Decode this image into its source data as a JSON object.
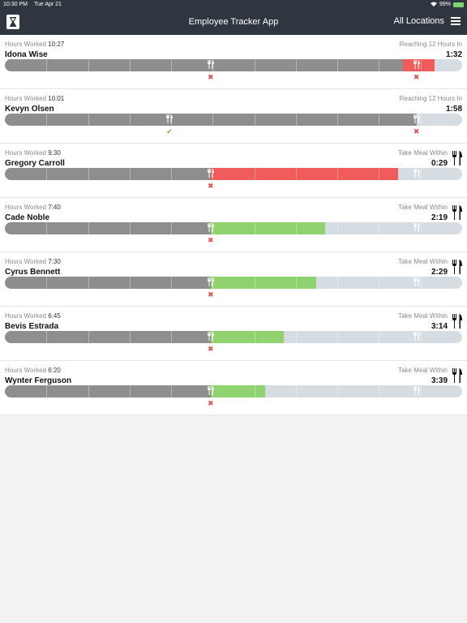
{
  "status_bar": {
    "time": "10:30 PM",
    "date": "Tue Apr 21",
    "battery": "99%",
    "wifi_icon": "wifi-icon"
  },
  "nav": {
    "title": "Employee Tracker App",
    "location": "All Locations",
    "menu_icon": "hamburger-icon",
    "logo_icon": "hourglass-icon"
  },
  "hours_worked_label": "Hours Worked",
  "rows": [
    {
      "hours": "10:27",
      "name": "Idona Wise",
      "status": "Reaching 12 Hours In",
      "time": "1:32",
      "big_fork": false,
      "gray_end": 0.87,
      "color": "red",
      "color_start": 0.87,
      "color_end": 0.94,
      "forks": [
        0.45,
        0.9
      ],
      "marks": [
        {
          "pos": 0.45,
          "type": "x"
        },
        {
          "pos": 0.9,
          "type": "x"
        }
      ]
    },
    {
      "hours": "10:01",
      "name": "Kevyn Olsen",
      "status": "Reaching 12 Hours In",
      "time": "1:58",
      "big_fork": false,
      "gray_end": 0.9,
      "color": "red",
      "color_start": 0.9,
      "color_end": 0.9,
      "forks": [
        0.36,
        0.9
      ],
      "marks": [
        {
          "pos": 0.36,
          "type": "ok"
        },
        {
          "pos": 0.9,
          "type": "x"
        }
      ]
    },
    {
      "hours": "9:30",
      "name": "Gregory Carroll",
      "status": "Take Meal Within",
      "time": "0:29",
      "big_fork": true,
      "gray_end": 0.45,
      "color": "red",
      "color_start": 0.45,
      "color_end": 0.86,
      "forks": [
        0.45,
        0.9
      ],
      "marks": [
        {
          "pos": 0.45,
          "type": "x"
        }
      ]
    },
    {
      "hours": "7:40",
      "name": "Cade Noble",
      "status": "Take Meal Within",
      "time": "2:19",
      "big_fork": true,
      "gray_end": 0.45,
      "color": "green",
      "color_start": 0.45,
      "color_end": 0.7,
      "forks": [
        0.45,
        0.9
      ],
      "marks": [
        {
          "pos": 0.45,
          "type": "x"
        }
      ]
    },
    {
      "hours": "7:30",
      "name": "Cyrus Bennett",
      "status": "Take Meal Within",
      "time": "2:29",
      "big_fork": true,
      "gray_end": 0.45,
      "color": "green",
      "color_start": 0.45,
      "color_end": 0.68,
      "forks": [
        0.45,
        0.9
      ],
      "marks": [
        {
          "pos": 0.45,
          "type": "x"
        }
      ]
    },
    {
      "hours": "6:45",
      "name": "Bevis Estrada",
      "status": "Take Meal Within",
      "time": "3:14",
      "big_fork": true,
      "gray_end": 0.45,
      "color": "green",
      "color_start": 0.45,
      "color_end": 0.61,
      "forks": [
        0.45,
        0.9
      ],
      "marks": [
        {
          "pos": 0.45,
          "type": "x"
        }
      ]
    },
    {
      "hours": "6:20",
      "name": "Wynter Ferguson",
      "status": "Take Meal Within",
      "time": "3:39",
      "big_fork": true,
      "gray_end": 0.45,
      "color": "green",
      "color_start": 0.45,
      "color_end": 0.57,
      "forks": [
        0.45,
        0.9
      ],
      "marks": [
        {
          "pos": 0.45,
          "type": "x"
        }
      ]
    }
  ]
}
